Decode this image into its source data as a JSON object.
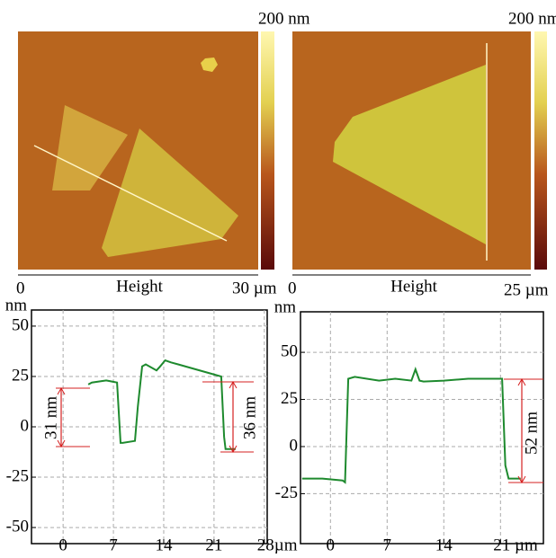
{
  "images": [
    {
      "colorbar_label": "200 nm",
      "scale_start": "0",
      "scale_label": "Height",
      "scale_end": "30 µm"
    },
    {
      "colorbar_label": "200 nm",
      "scale_start": "0",
      "scale_label": "Height",
      "scale_end": "25 µm"
    }
  ],
  "chart_data": [
    {
      "type": "line",
      "y_label": "nm",
      "color": "#1e8a2e",
      "grid": true,
      "x": [
        3.5,
        4,
        6,
        7.5,
        8,
        8.3,
        10,
        10.4,
        11,
        11.5,
        12.5,
        13,
        13.5,
        14.2,
        15,
        16,
        18,
        20,
        22,
        22.4,
        22.6,
        24
      ],
      "values": [
        21,
        22,
        23,
        22,
        -8,
        -8,
        -7,
        10,
        30,
        31,
        29,
        28,
        30,
        33,
        32,
        31,
        29,
        27,
        25,
        -5,
        -11,
        -11
      ],
      "xlim": [
        -4.4,
        28.4
      ],
      "xticks": [
        0,
        7,
        14,
        21,
        {
          "value": 28,
          "label": "28µm"
        }
      ],
      "ylim": [
        -58,
        58
      ],
      "yticks": [
        50,
        25,
        0,
        -25,
        -50
      ],
      "annotations": [
        "31 nm",
        "36 nm"
      ]
    },
    {
      "type": "line",
      "y_label": "nm",
      "color": "#1e8a2e",
      "grid": true,
      "x": [
        -3.5,
        -1,
        1.5,
        1.8,
        2.2,
        3,
        6,
        8,
        10,
        10.5,
        11,
        11.5,
        14,
        17,
        19,
        21.2,
        21.6,
        22,
        23.5
      ],
      "values": [
        -17,
        -17,
        -18,
        -19,
        36,
        37,
        35,
        36,
        35,
        41,
        35,
        34.5,
        35,
        36,
        36,
        36,
        -10,
        -17,
        -17
      ],
      "xlim": [
        -3.7,
        26.3
      ],
      "xticks": [
        0,
        7,
        14,
        {
          "value": 21,
          "label": "21 µm"
        }
      ],
      "ylim": [
        -51.5,
        71.5
      ],
      "yticks": [
        50,
        25,
        0,
        -25
      ],
      "annotations": [
        "52 nm"
      ]
    }
  ]
}
